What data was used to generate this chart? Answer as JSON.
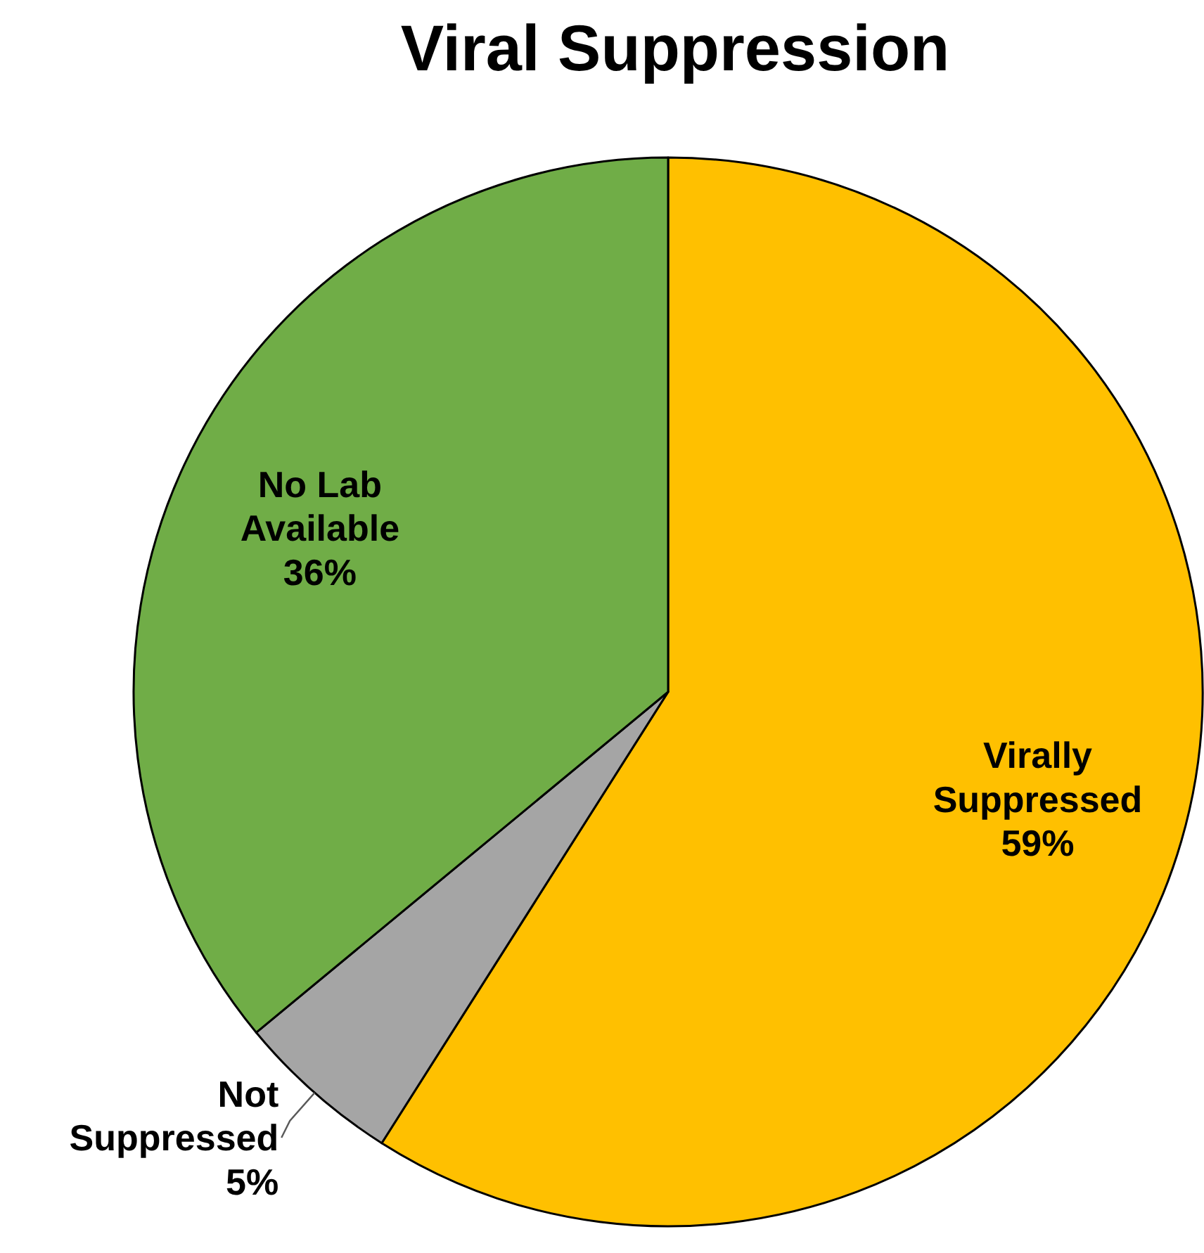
{
  "chart_data": {
    "type": "pie",
    "title": "Viral Suppression",
    "categories": [
      "Virally Suppressed",
      "Not Suppressed",
      "No Lab Available"
    ],
    "values": [
      59,
      5,
      36
    ],
    "colors": [
      "#ffc000",
      "#a5a5a5",
      "#70ad47"
    ],
    "value_labels": [
      "59%",
      "5%",
      "36%"
    ]
  }
}
